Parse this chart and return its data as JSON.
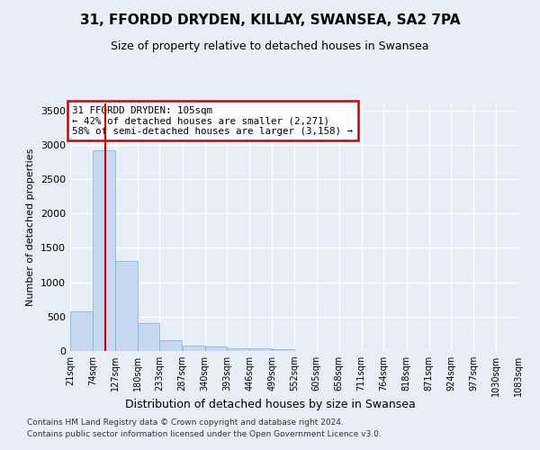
{
  "title": "31, FFORDD DRYDEN, KILLAY, SWANSEA, SA2 7PA",
  "subtitle": "Size of property relative to detached houses in Swansea",
  "xlabel": "Distribution of detached houses by size in Swansea",
  "ylabel": "Number of detached properties",
  "bar_color": "#c5d8f0",
  "bar_edge_color": "#7aaed4",
  "background_color": "#e8eef8",
  "grid_color": "#ffffff",
  "annotation_box_color": "#cc0000",
  "annotation_text": "31 FFORDD DRYDEN: 105sqm\n← 42% of detached houses are smaller (2,271)\n58% of semi-detached houses are larger (3,158) →",
  "property_line_x": 105,
  "property_line_color": "#cc0000",
  "bins": [
    21,
    74,
    127,
    180,
    233,
    287,
    340,
    393,
    446,
    499,
    552,
    605,
    658,
    711,
    764,
    818,
    871,
    924,
    977,
    1030,
    1083
  ],
  "bin_labels": [
    "21sqm",
    "74sqm",
    "127sqm",
    "180sqm",
    "233sqm",
    "287sqm",
    "340sqm",
    "393sqm",
    "446sqm",
    "499sqm",
    "552sqm",
    "605sqm",
    "658sqm",
    "711sqm",
    "764sqm",
    "818sqm",
    "871sqm",
    "924sqm",
    "977sqm",
    "1030sqm",
    "1083sqm"
  ],
  "bar_heights": [
    575,
    2920,
    1310,
    410,
    155,
    80,
    60,
    45,
    40,
    30,
    0,
    0,
    0,
    0,
    0,
    0,
    0,
    0,
    0,
    0
  ],
  "ylim": [
    0,
    3600
  ],
  "yticks": [
    0,
    500,
    1000,
    1500,
    2000,
    2500,
    3000,
    3500
  ],
  "footer1": "Contains HM Land Registry data © Crown copyright and database right 2024.",
  "footer2": "Contains public sector information licensed under the Open Government Licence v3.0."
}
